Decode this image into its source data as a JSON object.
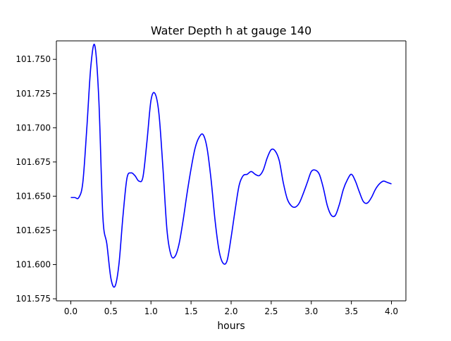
{
  "chart_data": {
    "type": "line",
    "title": "Water Depth h at gauge 140",
    "xlabel": "hours",
    "ylabel": "",
    "xlim": [
      -0.18,
      4.18
    ],
    "ylim": [
      101.5735,
      101.7635
    ],
    "x_ticks": [
      0.0,
      0.5,
      1.0,
      1.5,
      2.0,
      2.5,
      3.0,
      3.5,
      4.0
    ],
    "x_tick_labels": [
      "0.0",
      "0.5",
      "1.0",
      "1.5",
      "2.0",
      "2.5",
      "3.0",
      "3.5",
      "4.0"
    ],
    "y_ticks": [
      101.575,
      101.6,
      101.625,
      101.65,
      101.675,
      101.7,
      101.725,
      101.75
    ],
    "y_tick_labels": [
      "101.575",
      "101.600",
      "101.625",
      "101.650",
      "101.675",
      "101.700",
      "101.725",
      "101.750"
    ],
    "grid": false,
    "legend": "none",
    "series": [
      {
        "color": "#0000ff",
        "x": [
          0.0,
          0.05,
          0.1,
          0.15,
          0.2,
          0.25,
          0.3,
          0.35,
          0.4,
          0.45,
          0.5,
          0.55,
          0.6,
          0.65,
          0.7,
          0.75,
          0.8,
          0.85,
          0.9,
          0.95,
          1.0,
          1.05,
          1.1,
          1.15,
          1.2,
          1.25,
          1.3,
          1.35,
          1.4,
          1.45,
          1.5,
          1.55,
          1.6,
          1.65,
          1.7,
          1.75,
          1.8,
          1.85,
          1.9,
          1.95,
          2.0,
          2.05,
          2.1,
          2.15,
          2.2,
          2.25,
          2.3,
          2.35,
          2.4,
          2.45,
          2.5,
          2.55,
          2.6,
          2.65,
          2.7,
          2.75,
          2.8,
          2.85,
          2.9,
          2.95,
          3.0,
          3.05,
          3.1,
          3.15,
          3.2,
          3.25,
          3.3,
          3.35,
          3.4,
          3.45,
          3.5,
          3.55,
          3.6,
          3.65,
          3.7,
          3.75,
          3.8,
          3.85,
          3.9,
          3.95,
          4.0
        ],
        "values": [
          101.649,
          101.649,
          101.649,
          101.66,
          101.7,
          101.745,
          101.76,
          101.72,
          101.635,
          101.615,
          101.59,
          101.584,
          101.6,
          101.635,
          101.663,
          101.667,
          101.665,
          101.661,
          101.664,
          101.69,
          101.72,
          101.725,
          101.71,
          101.67,
          101.625,
          101.607,
          101.606,
          101.615,
          101.632,
          101.652,
          101.67,
          101.685,
          101.693,
          101.695,
          101.685,
          101.662,
          101.632,
          101.61,
          101.601,
          101.603,
          101.62,
          101.64,
          101.658,
          101.665,
          101.666,
          101.668,
          101.666,
          101.665,
          101.669,
          101.678,
          101.684,
          101.683,
          101.676,
          101.66,
          101.648,
          101.643,
          101.642,
          101.645,
          101.652,
          101.66,
          101.668,
          101.669,
          101.666,
          101.656,
          101.643,
          101.636,
          101.636,
          101.644,
          101.655,
          101.662,
          101.666,
          101.661,
          101.653,
          101.646,
          101.645,
          101.649,
          101.655,
          101.659,
          101.661,
          101.66,
          101.659
        ]
      }
    ]
  }
}
